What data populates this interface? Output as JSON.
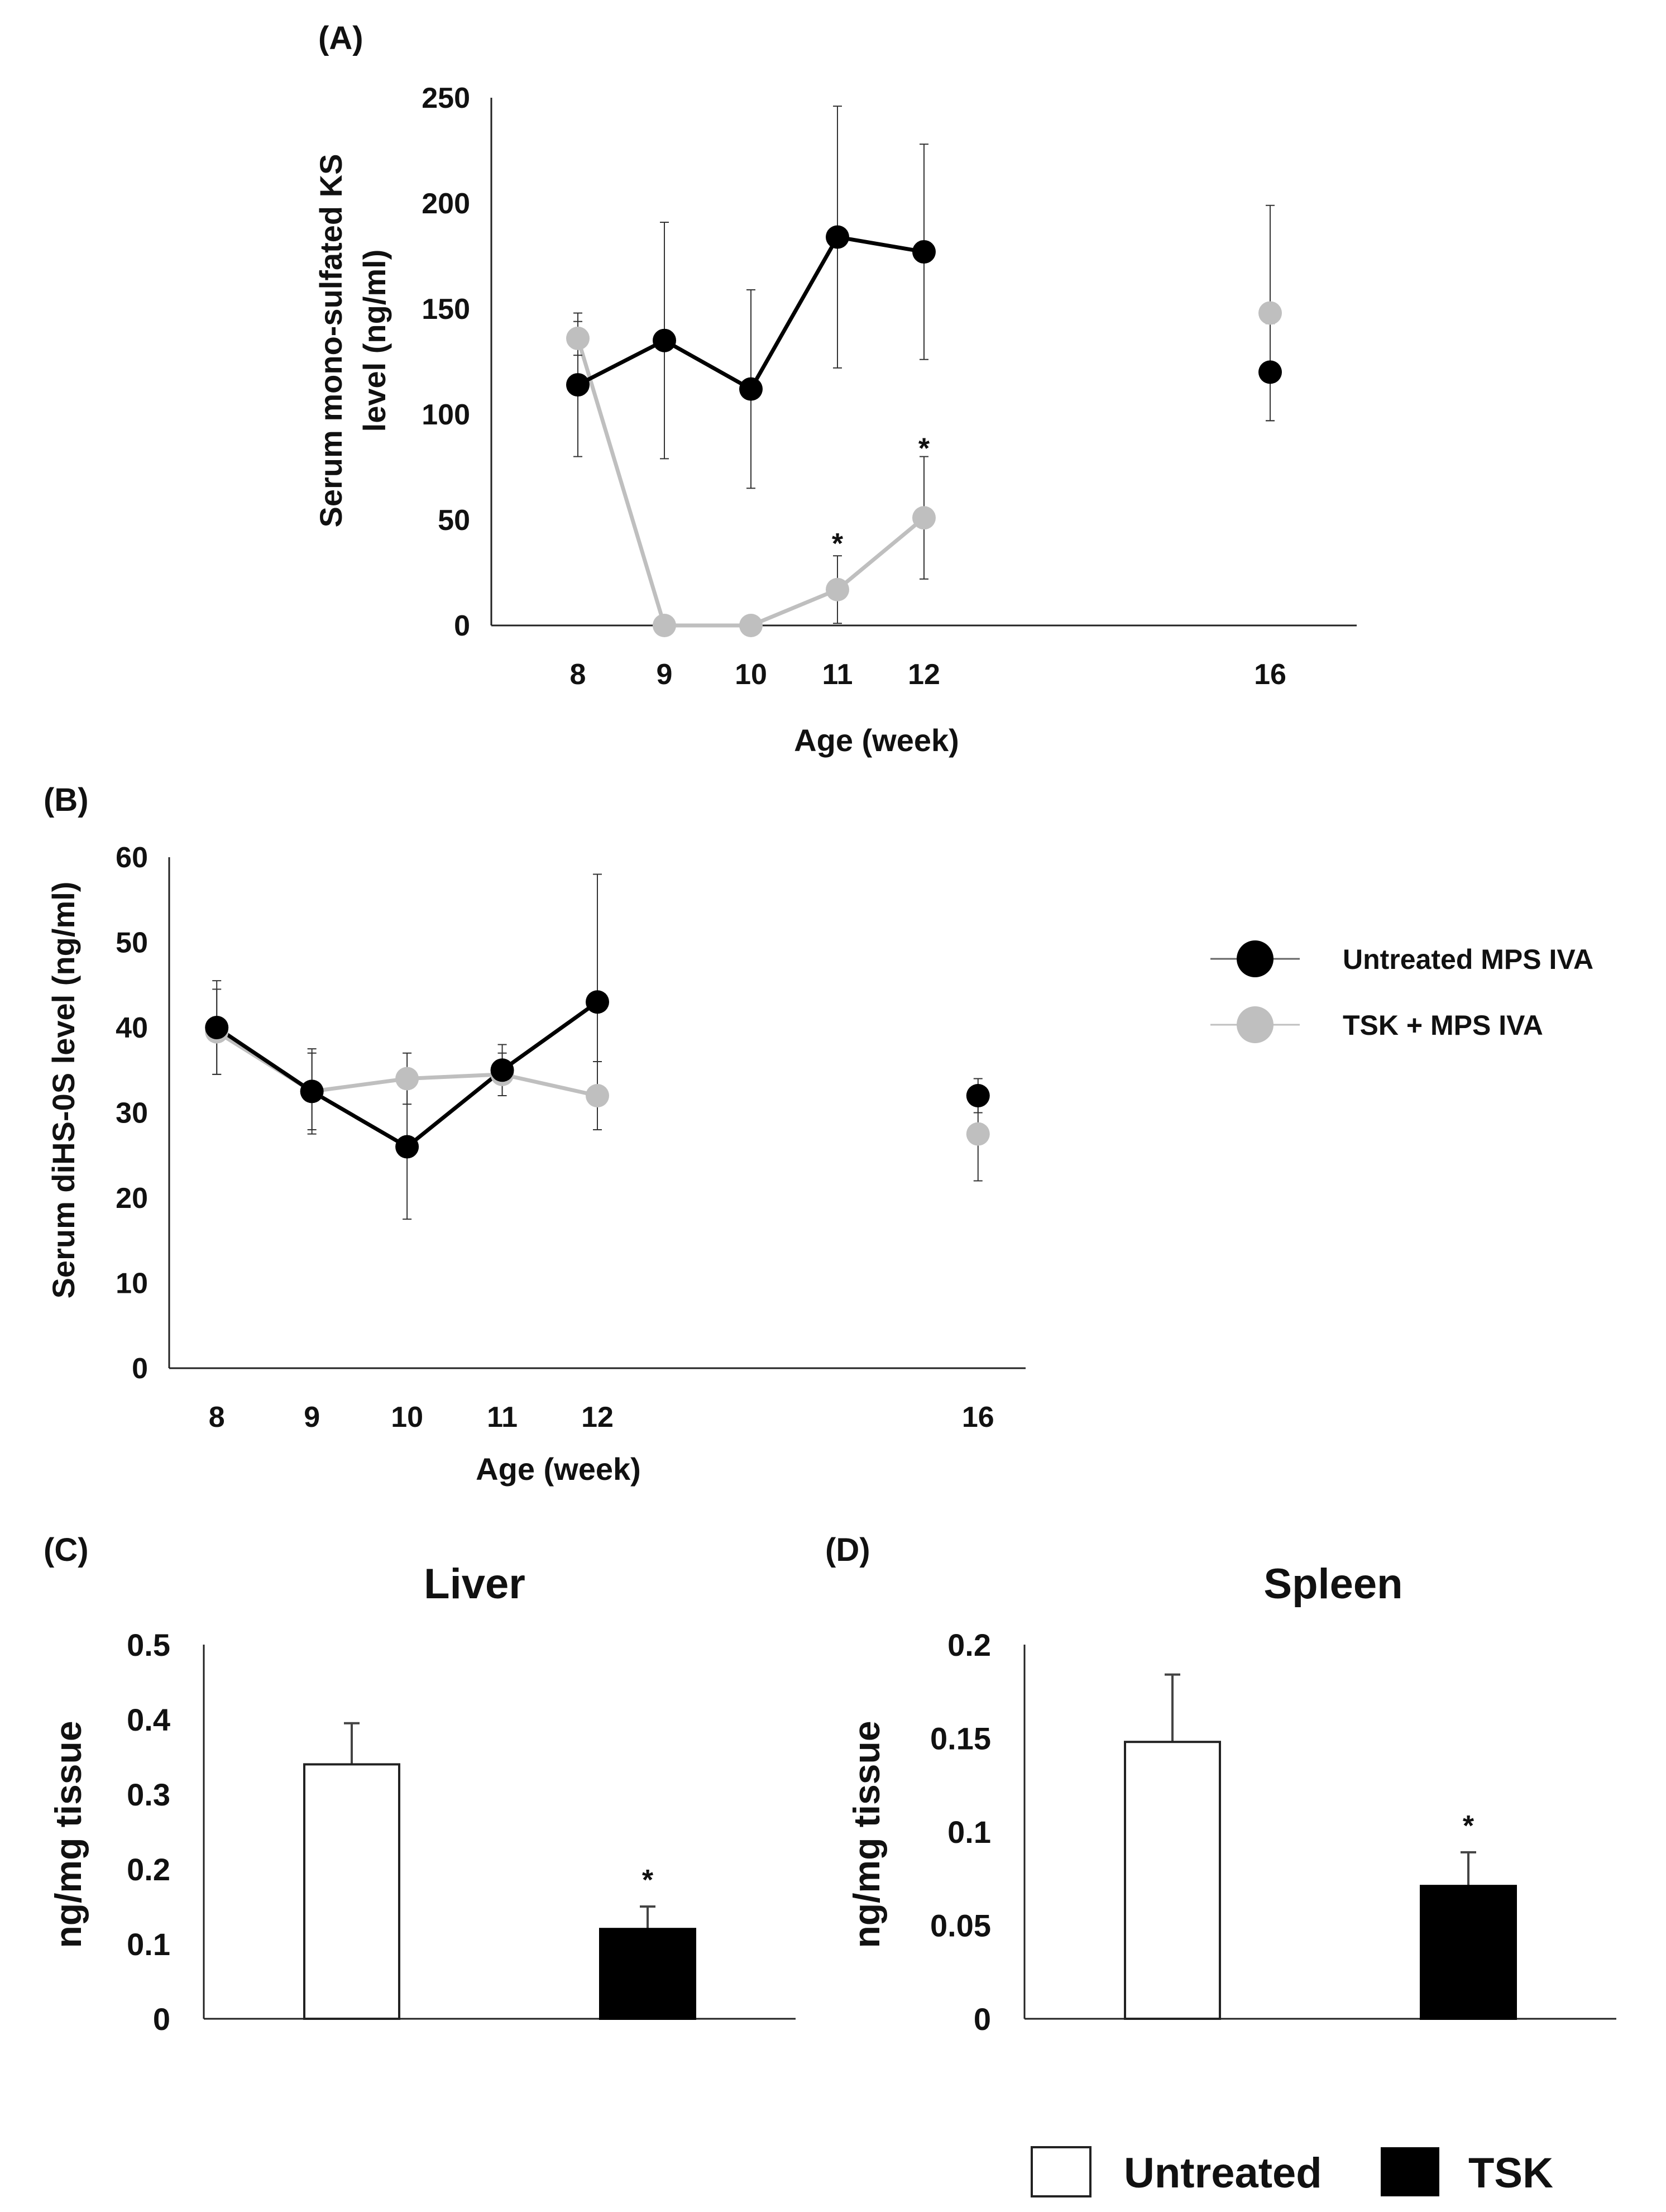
{
  "colors": {
    "untreated": "#000000",
    "tsk": "#bfbfbf",
    "axis": "#222222",
    "errbar": "#333333",
    "bar_untreated_fill": "#ffffff",
    "bar_tsk_fill": "#000000"
  },
  "panels": {
    "A": {
      "label": "(A)"
    },
    "B": {
      "label": "(B)"
    },
    "C": {
      "label": "(C)"
    },
    "D": {
      "label": "(D)"
    }
  },
  "legend_line": {
    "untreated": "Untreated MPS IVA",
    "tsk": "TSK + MPS IVA"
  },
  "legend_bar": {
    "untreated": "Untreated",
    "tsk": "TSK"
  },
  "chart_data": [
    {
      "id": "A",
      "type": "line",
      "title": "",
      "xlabel": "Age (week)",
      "ylabel": "Serum mono-sulfated KS level (ng/ml)",
      "ylabel_lines": [
        "Serum mono-sulfated KS",
        "level (ng/ml)"
      ],
      "xlim": [
        7,
        17
      ],
      "ylim": [
        0,
        250
      ],
      "xticks": [
        8,
        9,
        10,
        11,
        12,
        16
      ],
      "yticks": [
        0,
        50,
        100,
        150,
        200,
        250
      ],
      "series": [
        {
          "name": "Untreated MPS IVA",
          "color": "#000000",
          "x": [
            8,
            9,
            10,
            11,
            12,
            16
          ],
          "y": [
            114,
            135,
            112,
            184,
            177,
            120
          ],
          "err": [
            34,
            56,
            47,
            62,
            51,
            23
          ],
          "connect_until": 12
        },
        {
          "name": "TSK + MPS IVA",
          "color": "#bfbfbf",
          "x": [
            8,
            9,
            10,
            11,
            12,
            16
          ],
          "y": [
            136,
            0,
            0,
            17,
            51,
            148
          ],
          "err": [
            8,
            0,
            0,
            16,
            29,
            51
          ],
          "connect_until": 12
        }
      ],
      "annotations": [
        {
          "text": "*",
          "x": 11,
          "y": 40
        },
        {
          "text": "*",
          "x": 12,
          "y": 85
        }
      ]
    },
    {
      "id": "B",
      "type": "line",
      "title": "",
      "xlabel": "Age (week)",
      "ylabel": "Serum diHS-0S level (ng/ml)",
      "xlim": [
        7.5,
        16.5
      ],
      "ylim": [
        0,
        60
      ],
      "xticks": [
        8,
        9,
        10,
        11,
        12,
        16
      ],
      "yticks": [
        0,
        10,
        20,
        30,
        40,
        50,
        60
      ],
      "series": [
        {
          "name": "Untreated MPS IVA",
          "color": "#000000",
          "x": [
            8,
            9,
            10,
            11,
            12,
            16
          ],
          "y": [
            40,
            32.5,
            26,
            35,
            43,
            32
          ],
          "err": [
            5.5,
            5,
            8.5,
            3,
            15,
            2
          ],
          "connect_until": 12
        },
        {
          "name": "TSK + MPS IVA",
          "color": "#bfbfbf",
          "x": [
            8,
            9,
            10,
            11,
            12,
            16
          ],
          "y": [
            39.5,
            32.5,
            34,
            34.5,
            32,
            27.5
          ],
          "err": [
            5,
            4.5,
            3,
            2.5,
            4,
            5.5
          ],
          "connect_until": 12
        }
      ]
    },
    {
      "id": "C",
      "type": "bar",
      "title": "Liver",
      "xlabel": "",
      "ylabel": "ng/mg tissue",
      "categories": [
        "Untreated",
        "TSK"
      ],
      "values": [
        0.34,
        0.12
      ],
      "errors": [
        0.055,
        0.03
      ],
      "ylim": [
        0,
        0.5
      ],
      "yticks": [
        0,
        0.1,
        0.2,
        0.3,
        0.4,
        0.5
      ],
      "ytick_labels": [
        "0",
        "0.1",
        "0.2",
        "0.3",
        "0.4",
        "0.5"
      ],
      "annotations": [
        {
          "text": "*",
          "category": "TSK"
        }
      ]
    },
    {
      "id": "D",
      "type": "bar",
      "title": "Spleen",
      "xlabel": "",
      "ylabel": "ng/mg tissue",
      "categories": [
        "Untreated",
        "TSK"
      ],
      "values": [
        0.148,
        0.071
      ],
      "errors": [
        0.036,
        0.018
      ],
      "ylim": [
        0,
        0.2
      ],
      "yticks": [
        0,
        0.05,
        0.1,
        0.15,
        0.2
      ],
      "ytick_labels": [
        "0",
        "0.05",
        "0.1",
        "0.15",
        "0.2"
      ],
      "annotations": [
        {
          "text": "*",
          "category": "TSK"
        }
      ]
    }
  ]
}
